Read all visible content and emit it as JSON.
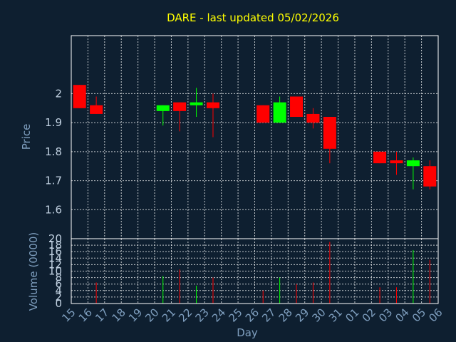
{
  "chart_data": {
    "type": "candlestick",
    "title": "DARE - last updated 05/02/2026",
    "xlabel": "Day",
    "ylabel": "Price",
    "volume_ylabel": "Volume (0000)",
    "x_tick_labels": [
      "15",
      "16",
      "17",
      "18",
      "19",
      "20",
      "21",
      "22",
      "23",
      "24",
      "25",
      "26",
      "27",
      "28",
      "29",
      "30",
      "31",
      "01",
      "02",
      "03",
      "04",
      "05",
      "06"
    ],
    "price_ylim": [
      1.5,
      2.2
    ],
    "price_yticks": [
      1.6,
      1.7,
      1.8,
      1.9,
      2
    ],
    "price_ytick_labels": [
      "1.6",
      "1.7",
      "1.8",
      "1.9",
      "2"
    ],
    "volume_ylim": [
      0,
      20
    ],
    "volume_yticks": [
      0,
      2,
      4,
      6,
      8,
      10,
      12,
      14,
      16,
      18,
      20
    ],
    "volume_ytick_labels": [
      "0",
      "2",
      "4",
      "6",
      "8",
      "10",
      "12",
      "14",
      "16",
      "18",
      "20"
    ],
    "grid": true,
    "colors": {
      "up": "#00ff00",
      "down": "#ff0000",
      "background": "#0e1f30",
      "title": "#ffff00"
    },
    "candles": [
      {
        "x": "15",
        "open": 2.03,
        "high": 2.03,
        "low": 1.95,
        "close": 1.95,
        "volume": 0
      },
      {
        "x": "16",
        "open": 1.96,
        "high": 1.99,
        "low": 1.93,
        "close": 1.93,
        "volume": 6.5
      },
      {
        "x": "20",
        "open": 1.94,
        "high": 1.96,
        "low": 1.89,
        "close": 1.96,
        "volume": 8.5
      },
      {
        "x": "21",
        "open": 1.97,
        "high": 1.97,
        "low": 1.87,
        "close": 1.94,
        "volume": 10.5
      },
      {
        "x": "22",
        "open": 1.96,
        "high": 2.02,
        "low": 1.92,
        "close": 1.97,
        "volume": 5.5
      },
      {
        "x": "23",
        "open": 1.97,
        "high": 2.0,
        "low": 1.85,
        "close": 1.95,
        "volume": 8.0
      },
      {
        "x": "26",
        "open": 1.96,
        "high": 1.96,
        "low": 1.9,
        "close": 1.9,
        "volume": 4.0
      },
      {
        "x": "27",
        "open": 1.9,
        "high": 1.99,
        "low": 1.9,
        "close": 1.97,
        "volume": 8.0
      },
      {
        "x": "28",
        "open": 1.99,
        "high": 1.99,
        "low": 1.92,
        "close": 1.92,
        "volume": 6.0
      },
      {
        "x": "29",
        "open": 1.93,
        "high": 1.95,
        "low": 1.88,
        "close": 1.9,
        "volume": 6.5
      },
      {
        "x": "30",
        "open": 1.92,
        "high": 1.92,
        "low": 1.76,
        "close": 1.81,
        "volume": 19.0
      },
      {
        "x": "02",
        "open": 1.8,
        "high": 1.8,
        "low": 1.76,
        "close": 1.76,
        "volume": 5.0
      },
      {
        "x": "03",
        "open": 1.77,
        "high": 1.8,
        "low": 1.72,
        "close": 1.76,
        "volume": 5.0
      },
      {
        "x": "04",
        "open": 1.75,
        "high": 1.78,
        "low": 1.67,
        "close": 1.77,
        "volume": 16.5
      },
      {
        "x": "05",
        "open": 1.75,
        "high": 1.77,
        "low": 1.67,
        "close": 1.68,
        "volume": 13.5
      }
    ]
  }
}
